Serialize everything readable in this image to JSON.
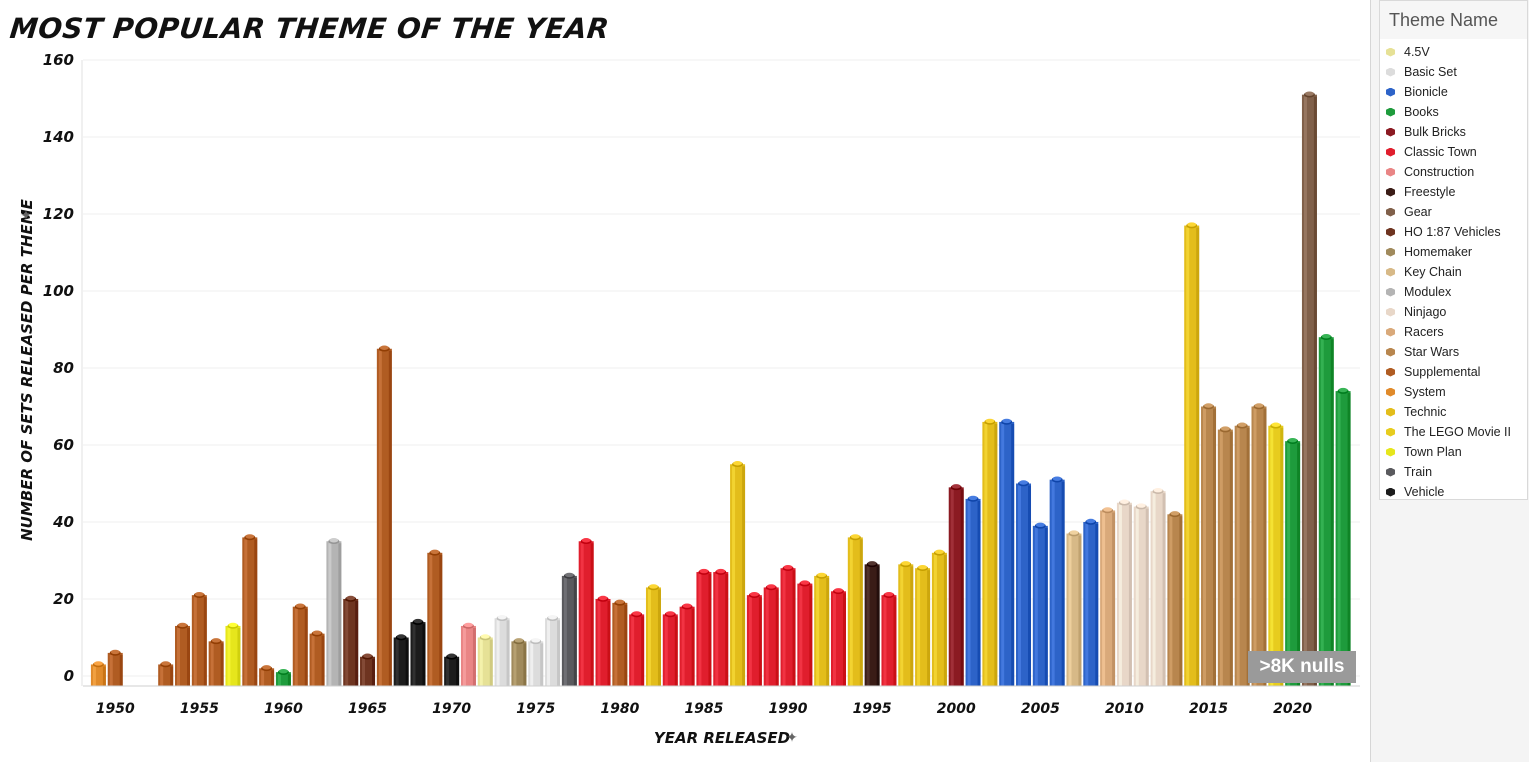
{
  "page_title": "Most Popular Theme of the Year",
  "legend": {
    "title": "Theme Name",
    "items": [
      {
        "label": "4.5V",
        "color": "#e6e196"
      },
      {
        "label": "Basic Set",
        "color": "#dcdcdc"
      },
      {
        "label": "Bionicle",
        "color": "#2d63c8"
      },
      {
        "label": "Books",
        "color": "#1e9b3c"
      },
      {
        "label": "Bulk Bricks",
        "color": "#8b1a22"
      },
      {
        "label": "Classic Town",
        "color": "#e01e2d"
      },
      {
        "label": "Construction",
        "color": "#e98585"
      },
      {
        "label": "Freestyle",
        "color": "#3a1c16"
      },
      {
        "label": "Gear",
        "color": "#80604a"
      },
      {
        "label": "HO 1:87 Vehicles",
        "color": "#6e3420"
      },
      {
        "label": "Homemaker",
        "color": "#a08a5c"
      },
      {
        "label": "Key Chain",
        "color": "#d7b987"
      },
      {
        "label": "Modulex",
        "color": "#b4b4b4"
      },
      {
        "label": "Ninjago",
        "color": "#e8d7c8"
      },
      {
        "label": "Racers",
        "color": "#d9a97a"
      },
      {
        "label": "Star Wars",
        "color": "#b8864e"
      },
      {
        "label": "Supplemental",
        "color": "#b05c22"
      },
      {
        "label": "System",
        "color": "#e08a2a"
      },
      {
        "label": "Technic",
        "color": "#e3bd1b"
      },
      {
        "label": "The LEGO Movie II",
        "color": "#e7cc1e"
      },
      {
        "label": "Town Plan",
        "color": "#e6e61c"
      },
      {
        "label": "Train",
        "color": "#5a5a5e"
      },
      {
        "label": "Vehicle",
        "color": "#1c1c1c"
      }
    ]
  },
  "nulls_badge": ">8K nulls",
  "chart_data": {
    "type": "bar",
    "title": "Most Popular Theme of the Year",
    "xlabel": "Year Released",
    "ylabel": "Number of Sets Released per Theme",
    "ylim": [
      0,
      160
    ],
    "yticks": [
      0,
      20,
      40,
      60,
      80,
      100,
      120,
      140,
      160
    ],
    "xlim": [
      1948.5,
      2022.5
    ],
    "xticks": [
      1950,
      1955,
      1960,
      1965,
      1970,
      1975,
      1980,
      1985,
      1990,
      1995,
      2000,
      2005,
      2010,
      2015,
      2020
    ],
    "grid": "horizontal",
    "legend_position": "right",
    "bars": [
      {
        "year": 1949,
        "value": 3,
        "theme": "System"
      },
      {
        "year": 1950,
        "value": 6,
        "theme": "Supplemental"
      },
      {
        "year": 1953,
        "value": 3,
        "theme": "Supplemental"
      },
      {
        "year": 1954,
        "value": 13,
        "theme": "Supplemental"
      },
      {
        "year": 1955,
        "value": 21,
        "theme": "Supplemental"
      },
      {
        "year": 1956,
        "value": 9,
        "theme": "Supplemental"
      },
      {
        "year": 1957,
        "value": 13,
        "theme": "Town Plan"
      },
      {
        "year": 1958,
        "value": 36,
        "theme": "Supplemental"
      },
      {
        "year": 1959,
        "value": 2,
        "theme": "Supplemental"
      },
      {
        "year": 1960,
        "value": 1,
        "theme": "Books"
      },
      {
        "year": 1961,
        "value": 18,
        "theme": "Supplemental"
      },
      {
        "year": 1962,
        "value": 11,
        "theme": "Supplemental"
      },
      {
        "year": 1963,
        "value": 35,
        "theme": "Modulex"
      },
      {
        "year": 1964,
        "value": 20,
        "theme": "HO 1:87 Vehicles"
      },
      {
        "year": 1965,
        "value": 5,
        "theme": "HO 1:87 Vehicles"
      },
      {
        "year": 1966,
        "value": 85,
        "theme": "Supplemental"
      },
      {
        "year": 1967,
        "value": 10,
        "theme": "Vehicle"
      },
      {
        "year": 1968,
        "value": 14,
        "theme": "Vehicle"
      },
      {
        "year": 1969,
        "value": 32,
        "theme": "Supplemental"
      },
      {
        "year": 1970,
        "value": 5,
        "theme": "Vehicle"
      },
      {
        "year": 1971,
        "value": 13,
        "theme": "Construction"
      },
      {
        "year": 1972,
        "value": 10,
        "theme": "4.5V"
      },
      {
        "year": 1973,
        "value": 15,
        "theme": "Basic Set"
      },
      {
        "year": 1974,
        "value": 9,
        "theme": "Homemaker"
      },
      {
        "year": 1975,
        "value": 9,
        "theme": "Basic Set"
      },
      {
        "year": 1976,
        "value": 15,
        "theme": "Basic Set"
      },
      {
        "year": 1977,
        "value": 26,
        "theme": "Train"
      },
      {
        "year": 1978,
        "value": 35,
        "theme": "Classic Town"
      },
      {
        "year": 1979,
        "value": 20,
        "theme": "Classic Town"
      },
      {
        "year": 1980,
        "value": 19,
        "theme": "Supplemental"
      },
      {
        "year": 1981,
        "value": 16,
        "theme": "Classic Town"
      },
      {
        "year": 1982,
        "value": 23,
        "theme": "Technic"
      },
      {
        "year": 1983,
        "value": 16,
        "theme": "Classic Town"
      },
      {
        "year": 1984,
        "value": 18,
        "theme": "Classic Town"
      },
      {
        "year": 1985,
        "value": 27,
        "theme": "Classic Town"
      },
      {
        "year": 1986,
        "value": 27,
        "theme": "Classic Town"
      },
      {
        "year": 1987,
        "value": 55,
        "theme": "Technic"
      },
      {
        "year": 1988,
        "value": 21,
        "theme": "Classic Town"
      },
      {
        "year": 1989,
        "value": 23,
        "theme": "Classic Town"
      },
      {
        "year": 1990,
        "value": 28,
        "theme": "Classic Town"
      },
      {
        "year": 1991,
        "value": 24,
        "theme": "Classic Town"
      },
      {
        "year": 1992,
        "value": 26,
        "theme": "Technic"
      },
      {
        "year": 1993,
        "value": 22,
        "theme": "Classic Town"
      },
      {
        "year": 1994,
        "value": 36,
        "theme": "Technic"
      },
      {
        "year": 1995,
        "value": 29,
        "theme": "Freestyle"
      },
      {
        "year": 1996,
        "value": 21,
        "theme": "Classic Town"
      },
      {
        "year": 1997,
        "value": 29,
        "theme": "Technic"
      },
      {
        "year": 1998,
        "value": 28,
        "theme": "Technic"
      },
      {
        "year": 1999,
        "value": 32,
        "theme": "Technic"
      },
      {
        "year": 2000,
        "value": 49,
        "theme": "Bulk Bricks"
      },
      {
        "year": 2001,
        "value": 46,
        "theme": "Bionicle"
      },
      {
        "year": 2002,
        "value": 66,
        "theme": "Technic"
      },
      {
        "year": 2003,
        "value": 66,
        "theme": "Bionicle"
      },
      {
        "year": 2004,
        "value": 50,
        "theme": "Bionicle"
      },
      {
        "year": 2005,
        "value": 39,
        "theme": "Bionicle"
      },
      {
        "year": 2006,
        "value": 51,
        "theme": "Bionicle"
      },
      {
        "year": 2007,
        "value": 37,
        "theme": "Key Chain"
      },
      {
        "year": 2008,
        "value": 40,
        "theme": "Bionicle"
      },
      {
        "year": 2009,
        "value": 43,
        "theme": "Racers"
      },
      {
        "year": 2010,
        "value": 45,
        "theme": "Ninjago"
      },
      {
        "year": 2011,
        "value": 44,
        "theme": "Ninjago"
      },
      {
        "year": 2012,
        "value": 48,
        "theme": "Ninjago"
      },
      {
        "year": 2013,
        "value": 42,
        "theme": "Star Wars"
      },
      {
        "year": 2014,
        "value": 117,
        "theme": "Technic"
      },
      {
        "year": 2015,
        "value": 70,
        "theme": "Star Wars"
      },
      {
        "year": 2016,
        "value": 64,
        "theme": "Star Wars"
      },
      {
        "year": 2017,
        "value": 65,
        "theme": "Star Wars"
      },
      {
        "year": 2018,
        "value": 70,
        "theme": "Star Wars"
      },
      {
        "year": 2019,
        "value": 65,
        "theme": "The LEGO Movie II"
      },
      {
        "year": 2020,
        "value": 61,
        "theme": "Books"
      },
      {
        "year": 2021,
        "value": 151,
        "theme": "Gear"
      },
      {
        "year": 2022,
        "value": 88,
        "theme": "Books"
      },
      {
        "year": 2023,
        "value": 74,
        "theme": "Books"
      }
    ]
  }
}
